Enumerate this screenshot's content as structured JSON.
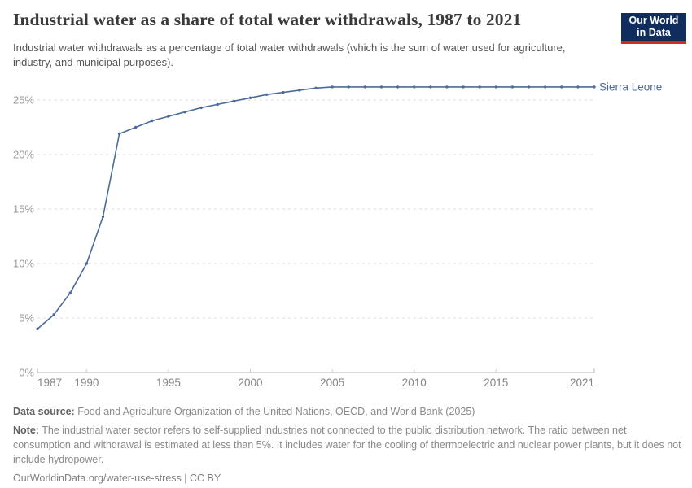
{
  "header": {
    "title": "Industrial water as a share of total water withdrawals, 1987 to 2021",
    "subtitle": "Industrial water withdrawals as a percentage of total water withdrawals (which is the sum of water used for agriculture, industry, and municipal purposes).",
    "logo": {
      "line1": "Our World",
      "line2": "in Data"
    }
  },
  "chart_data": {
    "type": "line",
    "title": "Industrial water as a share of total water withdrawals, 1987 to 2021",
    "xlabel": "",
    "ylabel": "",
    "xlim": [
      1987,
      2021
    ],
    "ylim": [
      0,
      26.5
    ],
    "grid": "horizontal-dashed",
    "legend": "end-of-line-label",
    "x_ticks": [
      {
        "value": 1987,
        "label": "1987"
      },
      {
        "value": 1990,
        "label": "1990"
      },
      {
        "value": 1995,
        "label": "1995"
      },
      {
        "value": 2000,
        "label": "2000"
      },
      {
        "value": 2005,
        "label": "2005"
      },
      {
        "value": 2010,
        "label": "2010"
      },
      {
        "value": 2015,
        "label": "2015"
      },
      {
        "value": 2021,
        "label": "2021"
      }
    ],
    "y_ticks": [
      {
        "value": 0,
        "label": "0%"
      },
      {
        "value": 5,
        "label": "5%"
      },
      {
        "value": 10,
        "label": "10%"
      },
      {
        "value": 15,
        "label": "15%"
      },
      {
        "value": 20,
        "label": "20%"
      },
      {
        "value": 25,
        "label": "25%"
      }
    ],
    "series": [
      {
        "name": "Sierra Leone",
        "color": "#4c6a9c",
        "x": [
          1987,
          1988,
          1989,
          1990,
          1991,
          1992,
          1993,
          1994,
          1995,
          1996,
          1997,
          1998,
          1999,
          2000,
          2001,
          2002,
          2003,
          2004,
          2005,
          2006,
          2007,
          2008,
          2009,
          2010,
          2011,
          2012,
          2013,
          2014,
          2015,
          2016,
          2017,
          2018,
          2019,
          2020,
          2021
        ],
        "values": [
          4.0,
          5.3,
          7.3,
          10.0,
          14.3,
          21.9,
          22.5,
          23.1,
          23.5,
          23.9,
          24.3,
          24.6,
          24.9,
          25.2,
          25.5,
          25.7,
          25.9,
          26.1,
          26.2,
          26.2,
          26.2,
          26.2,
          26.2,
          26.2,
          26.2,
          26.2,
          26.2,
          26.2,
          26.2,
          26.2,
          26.2,
          26.2,
          26.2,
          26.2,
          26.2
        ]
      }
    ]
  },
  "footer": {
    "data_source_label": "Data source:",
    "data_source": " Food and Agriculture Organization of the United Nations, OECD, and World Bank (2025)",
    "note_label": "Note:",
    "note": " The industrial water sector refers to self-supplied industries not connected to the public distribution network. The ratio between net consumption and withdrawal is estimated at less than 5%. It includes water for the cooling of thermoelectric and nuclear power plants, but it does not include hydropower.",
    "url_line": "OurWorldinData.org/water-use-stress | CC BY"
  },
  "colors": {
    "line": "#4c6a9c",
    "grid": "#dcdcdc",
    "axis": "#b9b9b9",
    "tick": "#cccccc",
    "logo_bg": "#102d5e",
    "logo_stripe": "#d42b21"
  }
}
